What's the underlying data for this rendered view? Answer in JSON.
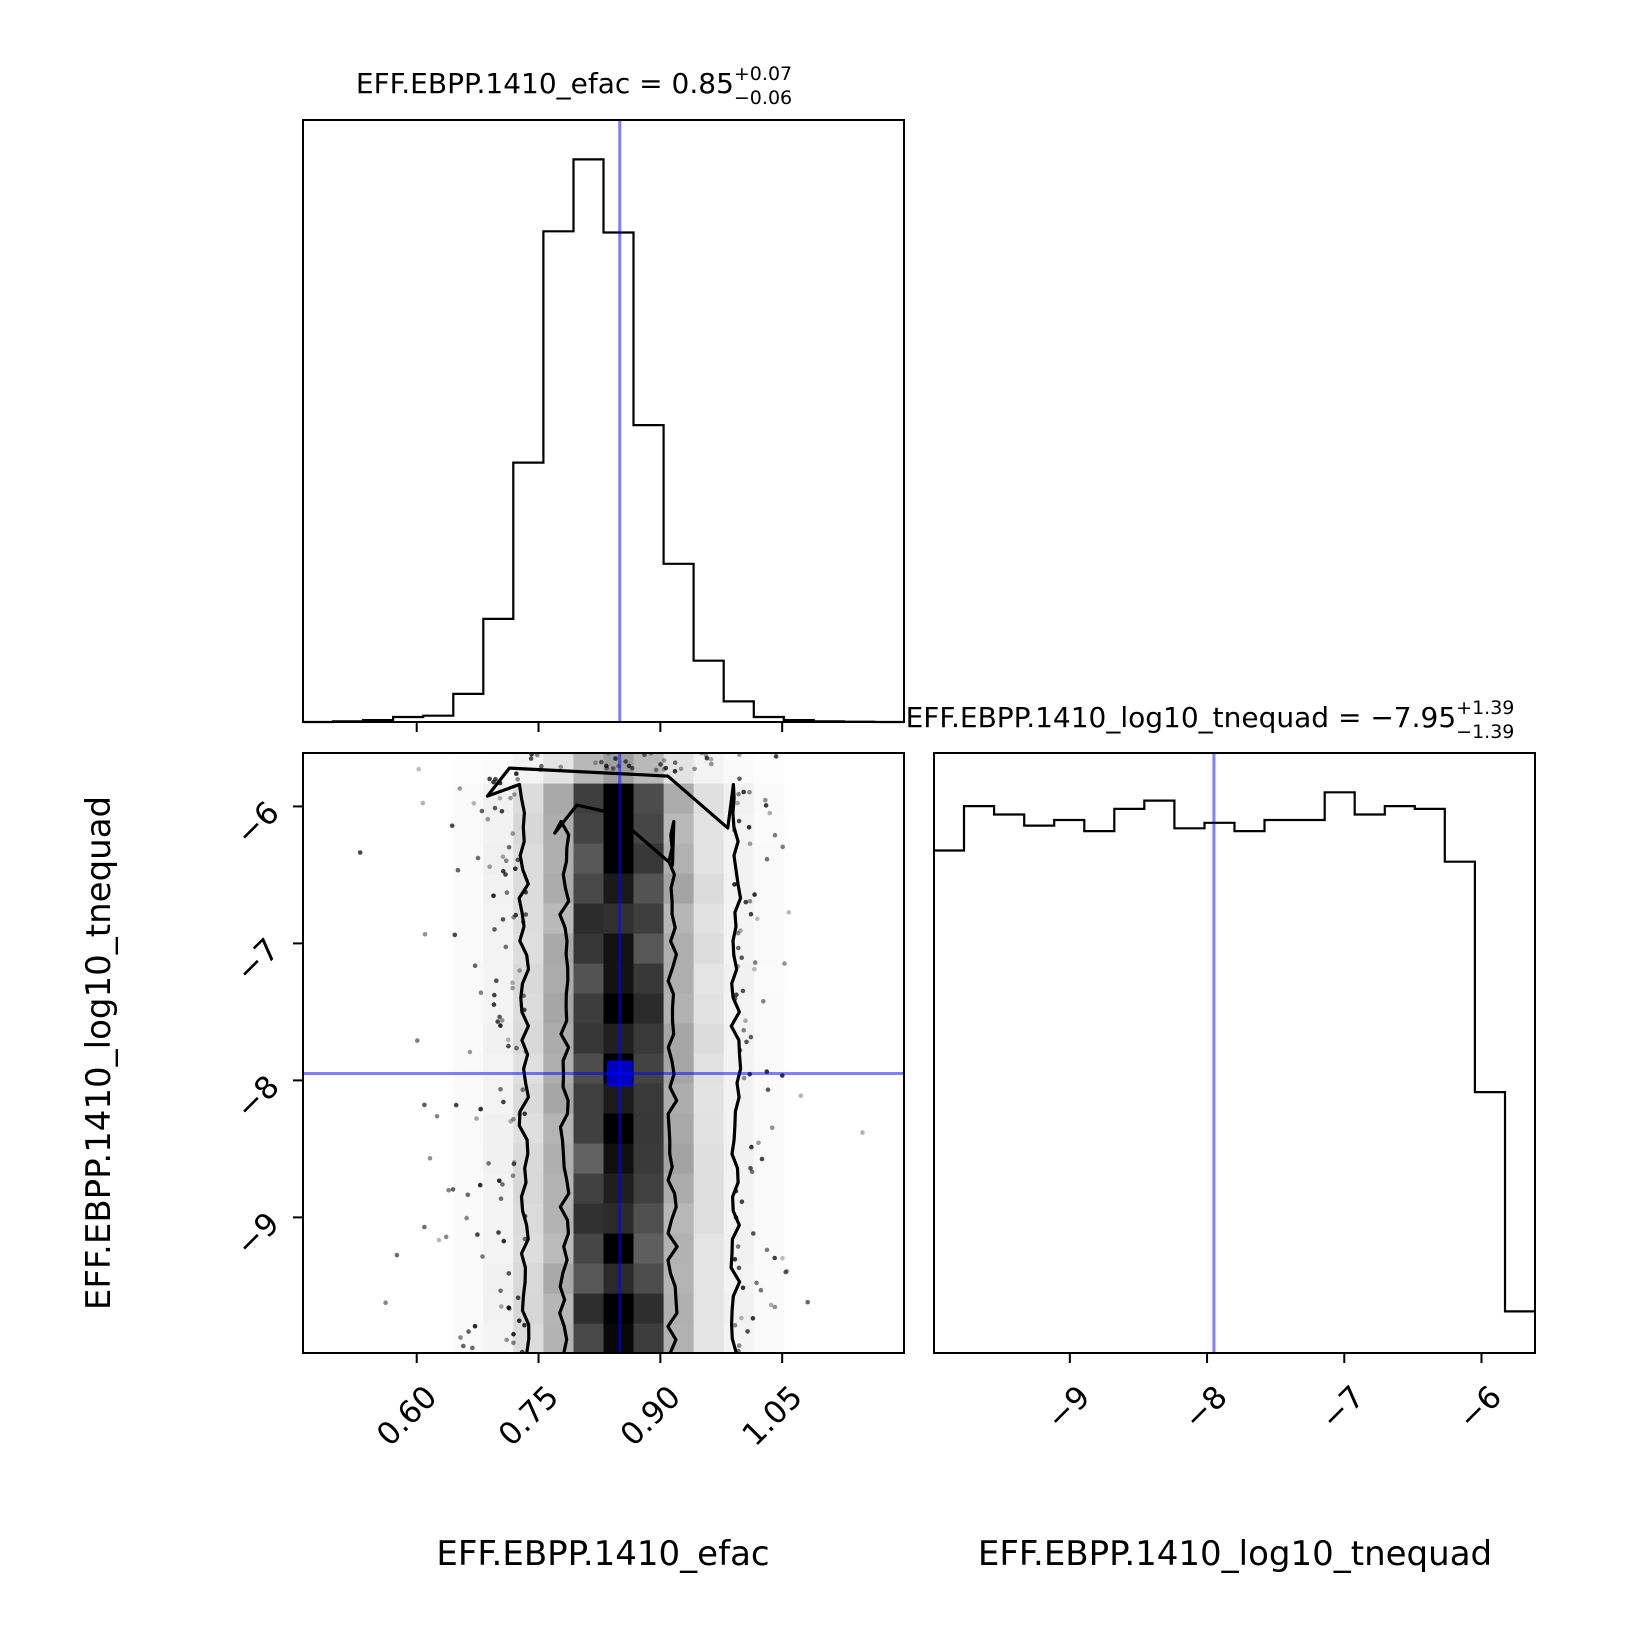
{
  "colors": {
    "truth": "#0000ff",
    "hist_line": "#000000",
    "axes": "#000000"
  },
  "chart_data": [
    {
      "type": "histogram",
      "panel": "top-left",
      "title": {
        "text": "EFF.EBPP.1410_efac = 0.85",
        "sup": "+0.07",
        "sub": "−0.06"
      },
      "xlim": [
        0.46,
        1.2
      ],
      "bin_edges": [
        0.46,
        0.497,
        0.534,
        0.571,
        0.608,
        0.645,
        0.682,
        0.719,
        0.756,
        0.793,
        0.83,
        0.867,
        0.904,
        0.941,
        0.978,
        1.015,
        1.052,
        1.089,
        1.126,
        1.163,
        1.2
      ],
      "counts": [
        0,
        0.1,
        0.3,
        0.8,
        1.0,
        4.5,
        16.5,
        41.5,
        78.5,
        90,
        78.3,
        47.5,
        25.3,
        9.8,
        3.3,
        0.8,
        0.3,
        0.1,
        0.05,
        0
      ],
      "truth_x": 0.85,
      "show_x_ticks": false
    },
    {
      "type": "scatter-density",
      "panel": "bottom-left",
      "xlabel": "EFF.EBPP.1410_efac",
      "ylabel": "EFF.EBPP.1410_log10_tnequad",
      "xlim": [
        0.46,
        1.2
      ],
      "ylim": [
        -9.99,
        -5.61
      ],
      "xticks": [
        0.6,
        0.75,
        0.9,
        1.05
      ],
      "xtick_labels": [
        "0.60",
        "0.75",
        "0.90",
        "1.05"
      ],
      "yticks": [
        -9,
        -8,
        -7,
        -6
      ],
      "ytick_labels": [
        "−9",
        "−8",
        "−7",
        "−6"
      ],
      "truth": {
        "x": 0.85,
        "y": -7.95
      },
      "contours": [
        {
          "level": "inner",
          "x_left": 0.782,
          "x_right": 0.915,
          "y_top": -5.99
        },
        {
          "level": "outer",
          "x_left": 0.732,
          "x_right": 0.993,
          "y_top": -5.72
        }
      ],
      "density_grid": {
        "x_edges": [
          0.46,
          0.497,
          0.534,
          0.571,
          0.608,
          0.645,
          0.682,
          0.719,
          0.756,
          0.793,
          0.83,
          0.867,
          0.904,
          0.941,
          0.978,
          1.015,
          1.052,
          1.089,
          1.126,
          1.163,
          1.2
        ],
        "column_weights": [
          0,
          0,
          0,
          0,
          0,
          0.02,
          0.05,
          0.14,
          0.32,
          0.72,
          0.95,
          0.74,
          0.32,
          0.12,
          0.05,
          0.02,
          0,
          0,
          0,
          0
        ]
      }
    },
    {
      "type": "histogram",
      "panel": "bottom-right",
      "title": {
        "text": "EFF.EBPP.1410_log10_tnequad = −7.95",
        "sup": "+1.39",
        "sub": "−1.39"
      },
      "xlabel": "EFF.EBPP.1410_log10_tnequad",
      "xlim": [
        -9.99,
        -5.61
      ],
      "bin_edges": [
        -9.99,
        -9.771,
        -9.552,
        -9.333,
        -9.114,
        -8.895,
        -8.676,
        -8.457,
        -8.238,
        -8.019,
        -7.8,
        -7.581,
        -7.362,
        -7.143,
        -6.924,
        -6.705,
        -6.486,
        -6.267,
        -6.048,
        -5.829,
        -5.61
      ],
      "counts": [
        90.5,
        98.5,
        97.0,
        95.0,
        96.0,
        94.0,
        98.0,
        99.5,
        94.5,
        95.5,
        94.0,
        96.0,
        96.0,
        101.0,
        97.0,
        98.5,
        98.0,
        88.5,
        47.0,
        7.5
      ],
      "xticks": [
        -9,
        -8,
        -7,
        -6
      ],
      "xtick_labels": [
        "−9",
        "−8",
        "−7",
        "−6"
      ],
      "truth_x": -7.95
    }
  ]
}
